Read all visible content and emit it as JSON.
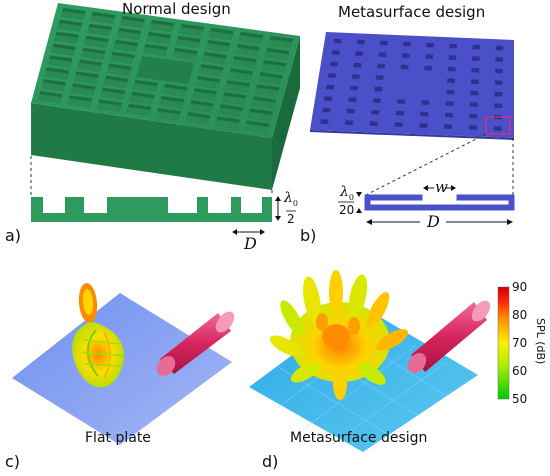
{
  "titles": {
    "normal": "Normal design",
    "metasurface": "Metasurface design"
  },
  "panel_letters": {
    "a": "a)",
    "b": "b)",
    "c": "c)",
    "d": "d)"
  },
  "panel_a": {
    "dim_lambda": "λ",
    "dim_lambda_sub": "0",
    "dim_denominator": "2",
    "dim_D": "D"
  },
  "panel_b": {
    "dim_lambda": "λ",
    "dim_lambda_sub": "0",
    "dim_denominator": "20",
    "dim_w": "w",
    "dim_D": "D"
  },
  "captions": {
    "c": "Flat plate",
    "d": "Metasurface design"
  },
  "colorbar": {
    "label": "SPL (dB)",
    "ticks": [
      "90",
      "80",
      "70",
      "60",
      "50"
    ],
    "min": 50,
    "max": 90,
    "colors": [
      "#00cc00",
      "#aaee00",
      "#ffee00",
      "#ff9900",
      "#ff2200",
      "#cc0000"
    ]
  },
  "colors": {
    "normal_design": "#2e9a5e",
    "metasurface": "#4b50c8",
    "source_cylinder": "#e0306a",
    "plate_flat": "#7c9bf0",
    "plate_meta": "#39b8e8"
  }
}
